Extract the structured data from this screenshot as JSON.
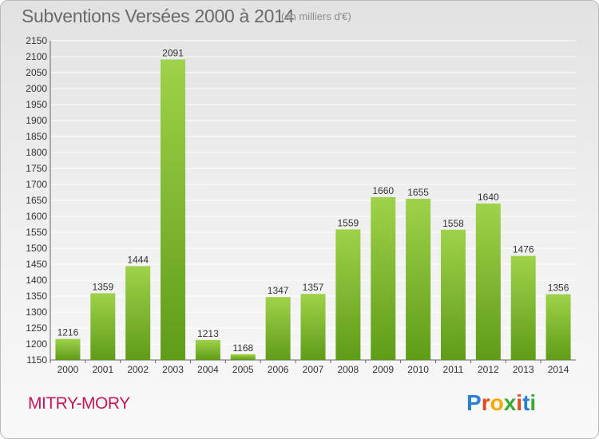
{
  "header": {
    "title": "Subventions Versées 2000 à 2014",
    "unit": "(en milliers d'€)"
  },
  "footer": {
    "city": "MITRY-MORY",
    "logo": [
      "P",
      "r",
      "o",
      "x",
      "i",
      "t",
      "i"
    ]
  },
  "colors": {
    "bar_light": "#9fd24a",
    "bar_dark": "#5f9c17",
    "city": "#c2185b",
    "grid": "#ffffff"
  },
  "chart_data": {
    "type": "bar",
    "title": "Subventions Versées 2000 à 2014",
    "subtitle": "(en milliers d'€)",
    "xlabel": "",
    "ylabel": "",
    "ylim": [
      1150,
      2150
    ],
    "ytick_step": 50,
    "grid": true,
    "categories": [
      "2000",
      "2001",
      "2002",
      "2003",
      "2004",
      "2005",
      "2006",
      "2007",
      "2008",
      "2009",
      "2010",
      "2011",
      "2012",
      "2013",
      "2014"
    ],
    "values": [
      1216,
      1359,
      1444,
      2091,
      1213,
      1168,
      1347,
      1357,
      1559,
      1660,
      1655,
      1558,
      1640,
      1476,
      1356
    ]
  }
}
